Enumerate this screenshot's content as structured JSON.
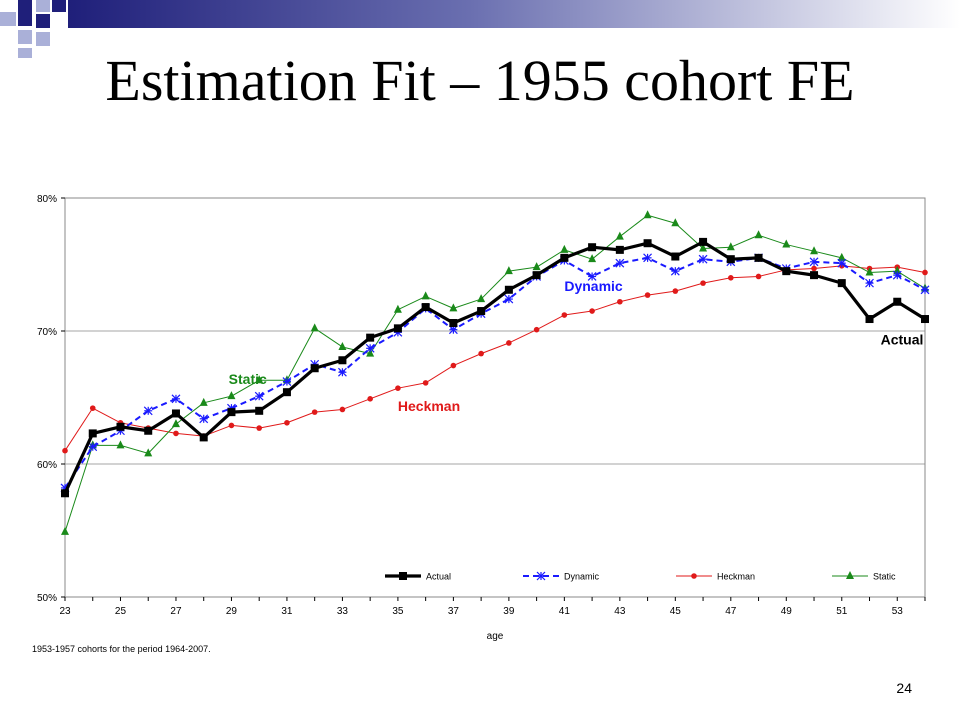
{
  "slide": {
    "title": "Estimation Fit – 1955 cohort FE",
    "footnote": "1953-1957 cohorts for the period 1964-2007.",
    "page_number": "24"
  },
  "colors": {
    "accent_dark": "#1f1f7a",
    "accent_light": "#aab0d8",
    "actual": "#000000",
    "dynamic": "#1a1aff",
    "heckman": "#e01a1a",
    "static": "#1a8a1a"
  },
  "chart_data": {
    "type": "line",
    "xlabel": "age",
    "ylabel": "",
    "x": [
      23,
      24,
      25,
      26,
      27,
      28,
      29,
      30,
      31,
      32,
      33,
      34,
      35,
      36,
      37,
      38,
      39,
      40,
      41,
      42,
      43,
      44,
      45,
      46,
      47,
      48,
      49,
      50,
      51,
      52,
      53,
      54
    ],
    "xlim": [
      23,
      54
    ],
    "xticks": [
      23,
      25,
      27,
      29,
      31,
      33,
      35,
      37,
      39,
      41,
      43,
      45,
      47,
      49,
      51,
      53
    ],
    "ylim": [
      50,
      80
    ],
    "yticks": [
      50,
      60,
      70,
      80
    ],
    "ytick_labels": [
      "50%",
      "60%",
      "70%",
      "80%"
    ],
    "grid": "horizontal",
    "legend_position": "bottom",
    "series": [
      {
        "name": "Actual",
        "color": "#000000",
        "marker": "square",
        "values": [
          57.8,
          62.3,
          62.8,
          62.5,
          63.8,
          62.0,
          63.9,
          64.0,
          65.4,
          67.2,
          67.8,
          69.5,
          70.2,
          71.8,
          70.6,
          71.5,
          73.1,
          74.2,
          75.5,
          76.3,
          76.1,
          76.6,
          75.6,
          76.7,
          75.4,
          75.5,
          74.5,
          74.2,
          73.6,
          70.9,
          72.2,
          70.9
        ]
      },
      {
        "name": "Dynamic",
        "color": "#1a1aff",
        "marker": "star",
        "values": [
          58.2,
          61.3,
          62.5,
          64.0,
          64.9,
          63.4,
          64.2,
          65.1,
          66.2,
          67.5,
          66.9,
          68.7,
          69.9,
          71.7,
          70.1,
          71.3,
          72.4,
          74.1,
          75.3,
          74.1,
          75.1,
          75.5,
          74.5,
          75.4,
          75.2,
          75.5,
          74.7,
          75.2,
          75.1,
          73.6,
          74.2,
          73.1
        ]
      },
      {
        "name": "Heckman",
        "color": "#e01a1a",
        "marker": "circle",
        "values": [
          61.0,
          64.2,
          63.1,
          62.7,
          62.3,
          62.1,
          62.9,
          62.7,
          63.1,
          63.9,
          64.1,
          64.9,
          65.7,
          66.1,
          67.4,
          68.3,
          69.1,
          70.1,
          71.2,
          71.5,
          72.2,
          72.7,
          73.0,
          73.6,
          74.0,
          74.1,
          74.6,
          74.7,
          74.9,
          74.7,
          74.8,
          74.4
        ]
      },
      {
        "name": "Static",
        "color": "#1a8a1a",
        "marker": "triangle",
        "values": [
          54.9,
          61.4,
          61.4,
          60.8,
          63.0,
          64.6,
          65.1,
          66.3,
          66.3,
          70.2,
          68.8,
          68.3,
          71.6,
          72.6,
          71.7,
          72.4,
          74.5,
          74.8,
          76.1,
          75.4,
          77.1,
          78.7,
          78.1,
          76.2,
          76.3,
          77.2,
          76.5,
          76.0,
          75.5,
          74.4,
          74.5,
          73.2
        ]
      }
    ],
    "annotations": [
      {
        "text": "Static",
        "series": "Static",
        "x": 28.9,
        "y": 66.0
      },
      {
        "text": "Heckman",
        "series": "Heckman",
        "x": 35.0,
        "y": 64.0
      },
      {
        "text": "Dynamic",
        "series": "Dynamic",
        "x": 41.0,
        "y": 73.0
      },
      {
        "text": "Actual",
        "series": "Actual",
        "x": 52.4,
        "y": 69.0
      }
    ]
  }
}
